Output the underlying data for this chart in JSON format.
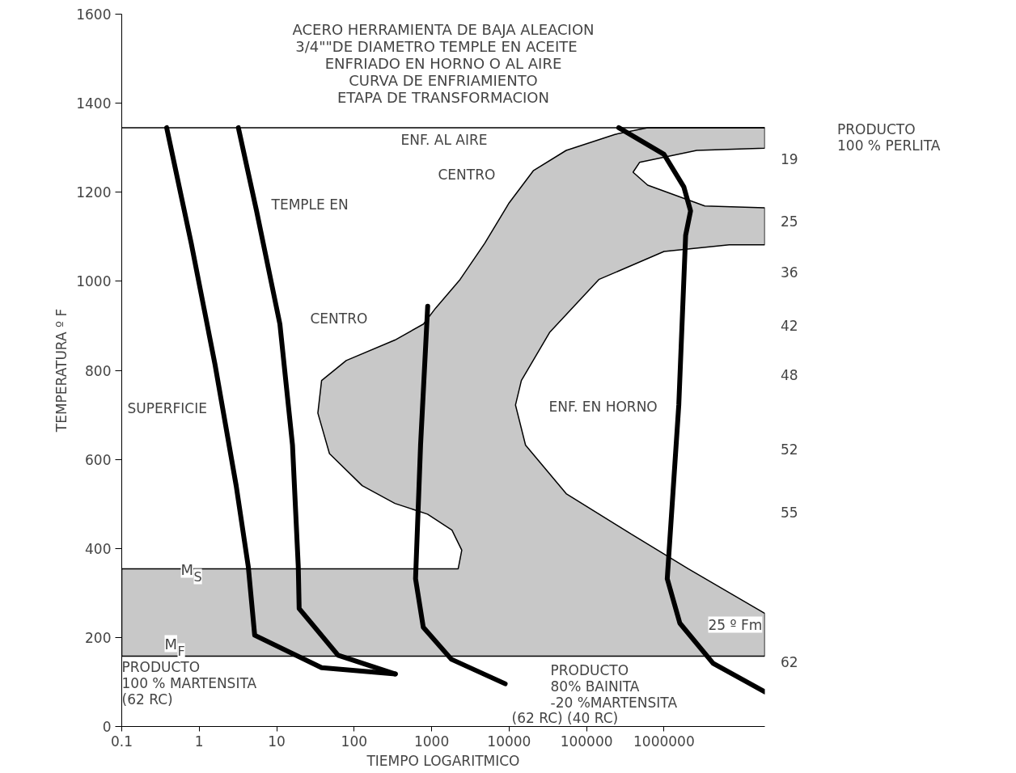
{
  "chart_data": {
    "type": "line",
    "title": "ACERO HERRAMIENTA DE BAJA ALEACION\n3/4\"\"DE DIAMETRO    TEMPLE EN ACEITE\nENFRIADO EN HORNO O AL AIRE\nCURVA DE ENFRIAMIENTO\nETAPA DE TRANSFORMACION",
    "xlabel": "TIEMPO LOGARITMICO",
    "ylabel": "TEMPERATURA º F",
    "log": "x",
    "grid": false,
    "xlim": [
      0.1,
      20000000
    ],
    "xticks": [
      0.1,
      1,
      10,
      100,
      1000,
      10000,
      100000,
      1000000
    ],
    "ylim": [
      0,
      1600
    ],
    "yticks": [
      0,
      200,
      400,
      600,
      800,
      1000,
      1200,
      1400,
      1600
    ],
    "series": [
      {
        "type": "area",
        "color": "#c8c8c8",
        "x": [
          0.1,
          2200,
          2450,
          1830,
          885,
          336,
          127,
          48,
          34,
          38,
          79,
          336,
          785,
          1130,
          2330,
          4830,
          10000,
          20700,
          54600,
          233000,
          615000,
          20000000,
          20000000,
          2640000,
          483000,
          398000,
          615000,
          3360000,
          20000000,
          20000000,
          6950000,
          1000000,
          144000,
          33600,
          14400,
          12100,
          16300,
          54600,
          379000,
          2070000,
          20000000,
          20000000,
          0.1
        ],
        "values": [
          354,
          354,
          396,
          441,
          477,
          501,
          541,
          613,
          704,
          777,
          822,
          868,
          904,
          940,
          1004,
          1085,
          1176,
          1249,
          1294,
          1330,
          1345,
          1345,
          1299,
          1294,
          1267,
          1245,
          1216,
          1169,
          1165,
          1082,
          1082,
          1067,
          1004,
          886,
          777,
          722,
          632,
          523,
          432,
          354,
          254,
          158,
          158
        ]
      },
      {
        "color": "#000000",
        "x": [
          0.38,
          0.79,
          1.6,
          3.0,
          4.3,
          5.2,
          38,
          340
        ],
        "values": [
          1345,
          1085,
          813,
          541,
          359,
          205,
          132,
          118
        ]
      },
      {
        "color": "#000000",
        "x": [
          3.2,
          5.5,
          11,
          16,
          19,
          19.5,
          62,
          340
        ],
        "values": [
          1345,
          1158,
          904,
          632,
          359,
          265,
          160,
          118
        ]
      },
      {
        "color": "#000000",
        "x": [
          890,
          720,
          620,
          780,
          1800,
          8900
        ],
        "values": [
          944,
          632,
          332,
          223,
          151,
          96
        ]
      },
      {
        "color": "#000000",
        "x": [
          260000,
          1000000,
          1800000,
          2200000,
          1900000,
          1550000,
          1100000,
          1600000,
          4300000,
          20000000
        ],
        "values": [
          1345,
          1285,
          1212,
          1158,
          1103,
          722,
          332,
          232,
          142,
          78
        ]
      }
    ],
    "ref_lines": [
      {
        "axis": "y",
        "value": 1345
      }
    ],
    "annotations": [
      {
        "text": "ENF. AL AIRE",
        "x": 400,
        "y": 1336
      },
      {
        "text": "PRODUCTO\n100 % MARTENSITA\n(62 RC)",
        "x": 0.1,
        "y": 151
      },
      "CENTRO",
      "TEMPLE EN",
      "CENTRO",
      "SUPERFICIE",
      "ENF. EN HORNO",
      "M$_{S}$",
      "M$_{F}$",
      "PRODUCTO\n80% BAINITA\n-20 %MARTENSITA",
      "(62 RC)  (40 RC)",
      "25 º Fm",
      "PRODUCTO\n100 % PERLITA",
      "19",
      "25",
      "36",
      "42",
      "48",
      "52",
      "55",
      "62"
    ]
  }
}
